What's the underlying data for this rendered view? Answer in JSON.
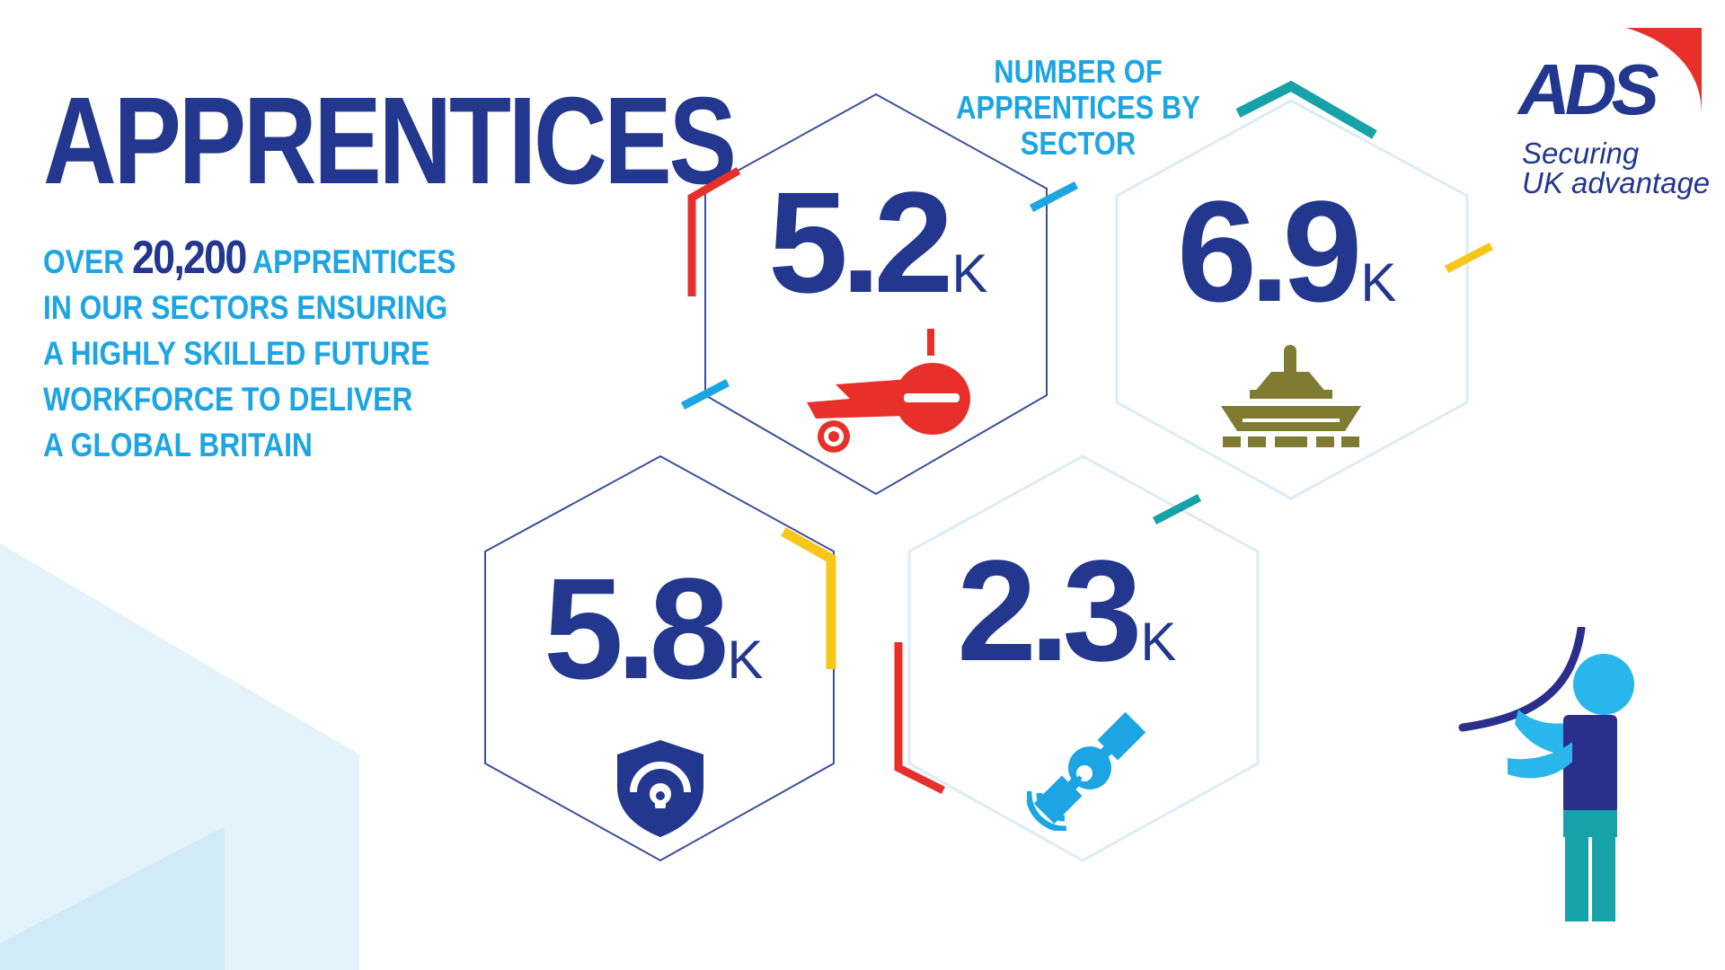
{
  "headline": "APPRENTICES",
  "intro": {
    "prefix": "OVER",
    "total": "20,200",
    "suffix": "APPRENTICES",
    "lines": [
      "IN OUR SECTORS ENSURING",
      "A HIGHLY SKILLED FUTURE",
      "WORKFORCE TO DELIVER",
      "A GLOBAL BRITAIN"
    ]
  },
  "sector_title": [
    "NUMBER OF",
    "APPRENTICES BY",
    "SECTOR"
  ],
  "stats": [
    {
      "value": "5.2",
      "unit": "K",
      "icon": "aircraft-icon"
    },
    {
      "value": "6.9",
      "unit": "K",
      "icon": "tank-icon"
    },
    {
      "value": "5.8",
      "unit": "K",
      "icon": "security-shield-icon"
    },
    {
      "value": "2.3",
      "unit": "K",
      "icon": "satellite-icon"
    }
  ],
  "logo": {
    "mark": "ADS",
    "tagline": [
      "Securing",
      "UK advantage"
    ]
  },
  "colors": {
    "navy": "#23378f",
    "sky": "#1da5e3",
    "red": "#e8302a",
    "teal": "#17a2a9",
    "yellow": "#f7c61b",
    "olive": "#807b33"
  }
}
